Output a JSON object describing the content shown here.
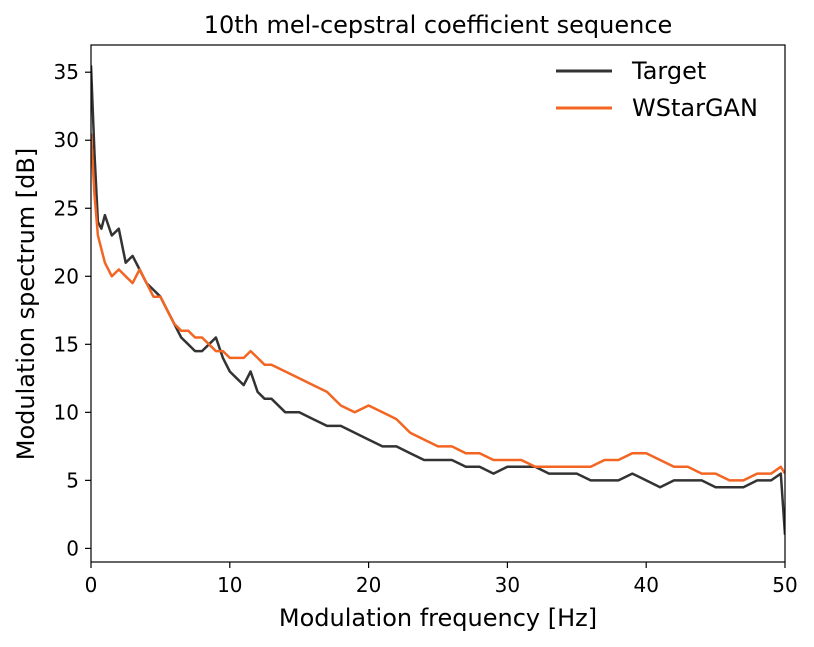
{
  "chart_data": {
    "type": "line",
    "title": "10th mel-cepstral coefficient sequence",
    "xlabel": "Modulation frequency [Hz]",
    "ylabel": "Modulation spectrum [dB]",
    "xlim": [
      0,
      50
    ],
    "ylim": [
      -1,
      37
    ],
    "xticks": [
      0,
      10,
      20,
      30,
      40,
      50
    ],
    "yticks": [
      0,
      5,
      10,
      15,
      20,
      25,
      30,
      35
    ],
    "grid": false,
    "legend_position": "top-right",
    "series": [
      {
        "name": "Target",
        "color": "#333333",
        "x": [
          0,
          0.25,
          0.5,
          0.75,
          1.0,
          1.5,
          2.0,
          2.5,
          3.0,
          3.5,
          4.0,
          4.5,
          5.0,
          5.5,
          6.0,
          6.5,
          7.0,
          7.5,
          8.0,
          8.5,
          9.0,
          9.5,
          10.0,
          10.5,
          11.0,
          11.5,
          12.0,
          12.5,
          13.0,
          14.0,
          15.0,
          16.0,
          17.0,
          18.0,
          19.0,
          20.0,
          21.0,
          22.0,
          23.0,
          24.0,
          25.0,
          26.0,
          27.0,
          28.0,
          29.0,
          30.0,
          31.0,
          32.0,
          33.0,
          34.0,
          35.0,
          36.0,
          37.0,
          38.0,
          39.0,
          40.0,
          41.0,
          42.0,
          43.0,
          44.0,
          45.0,
          46.0,
          47.0,
          48.0,
          49.0,
          49.7,
          50.0
        ],
        "values": [
          35.5,
          29,
          24,
          23.5,
          24.5,
          23,
          23.5,
          21,
          21.5,
          20.5,
          19.5,
          19,
          18.5,
          17.5,
          16.5,
          15.5,
          15,
          14.5,
          14.5,
          15,
          15.5,
          14,
          13,
          12.5,
          12,
          13,
          11.5,
          11,
          11,
          10,
          10,
          9.5,
          9,
          9,
          8.5,
          8,
          7.5,
          7.5,
          7,
          6.5,
          6.5,
          6.5,
          6,
          6,
          5.5,
          6,
          6,
          6,
          5.5,
          5.5,
          5.5,
          5,
          5,
          5,
          5.5,
          5,
          4.5,
          5,
          5,
          5,
          4.5,
          4.5,
          4.5,
          5,
          5,
          5.5,
          1
        ]
      },
      {
        "name": "WStarGAN",
        "color": "#f26522",
        "x": [
          0,
          0.25,
          0.5,
          0.75,
          1.0,
          1.5,
          2.0,
          2.5,
          3.0,
          3.5,
          4.0,
          4.5,
          5.0,
          5.5,
          6.0,
          6.5,
          7.0,
          7.5,
          8.0,
          8.5,
          9.0,
          9.5,
          10.0,
          10.5,
          11.0,
          11.5,
          12.0,
          12.5,
          13.0,
          14.0,
          15.0,
          16.0,
          17.0,
          18.0,
          19.0,
          20.0,
          21.0,
          22.0,
          23.0,
          24.0,
          25.0,
          26.0,
          27.0,
          28.0,
          29.0,
          30.0,
          31.0,
          32.0,
          33.0,
          34.0,
          35.0,
          36.0,
          37.0,
          38.0,
          39.0,
          40.0,
          41.0,
          42.0,
          43.0,
          44.0,
          45.0,
          46.0,
          47.0,
          48.0,
          49.0,
          49.7,
          50.0
        ],
        "values": [
          30.5,
          26,
          23,
          22,
          21,
          20,
          20.5,
          20,
          19.5,
          20.5,
          19.5,
          18.5,
          18.5,
          17.5,
          16.5,
          16,
          16,
          15.5,
          15.5,
          15,
          14.5,
          14.5,
          14,
          14,
          14,
          14.5,
          14,
          13.5,
          13.5,
          13,
          12.5,
          12,
          11.5,
          10.5,
          10,
          10.5,
          10,
          9.5,
          8.5,
          8,
          7.5,
          7.5,
          7,
          7,
          6.5,
          6.5,
          6.5,
          6,
          6,
          6,
          6,
          6,
          6.5,
          6.5,
          7,
          7,
          6.5,
          6,
          6,
          5.5,
          5.5,
          5,
          5,
          5.5,
          5.5,
          6,
          5.5
        ]
      }
    ]
  }
}
